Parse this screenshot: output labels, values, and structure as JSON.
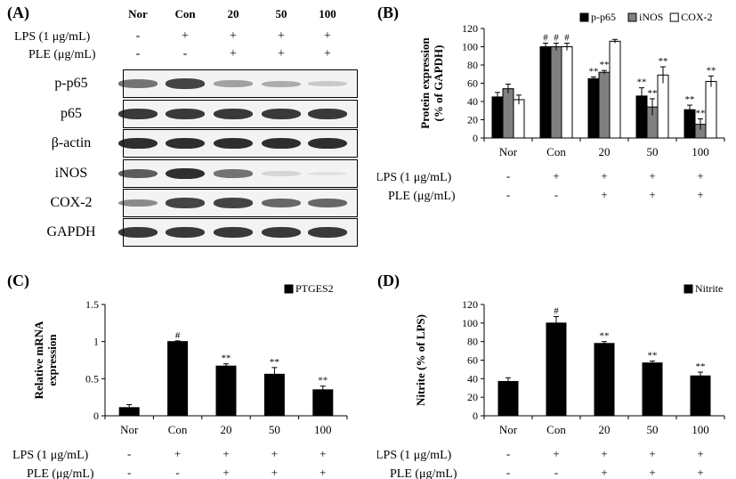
{
  "panels": {
    "A": {
      "label": "(A)",
      "columns": [
        "Nor",
        "Con",
        "20",
        "50",
        "100"
      ],
      "lps_label": "LPS (1 μg/mL)",
      "ple_label": "PLE (μg/mL)",
      "lps_signs": [
        "-",
        "+",
        "+",
        "+",
        "+"
      ],
      "ple_signs": [
        "-",
        "-",
        "+",
        "+",
        "+"
      ],
      "blots": [
        {
          "name": "p-p65",
          "intensity": [
            0.55,
            0.75,
            0.35,
            0.3,
            0.18
          ]
        },
        {
          "name": "p65",
          "intensity": [
            0.8,
            0.8,
            0.8,
            0.8,
            0.8
          ]
        },
        {
          "name": "β-actin",
          "intensity": [
            0.85,
            0.85,
            0.85,
            0.85,
            0.85
          ]
        },
        {
          "name": "iNOS",
          "intensity": [
            0.65,
            0.85,
            0.55,
            0.12,
            0.05
          ]
        },
        {
          "name": "COX-2",
          "intensity": [
            0.45,
            0.75,
            0.75,
            0.6,
            0.6
          ]
        },
        {
          "name": "GAPDH",
          "intensity": [
            0.8,
            0.8,
            0.8,
            0.8,
            0.8
          ]
        }
      ]
    },
    "B": {
      "label": "(B)"
    },
    "C": {
      "label": "(C)"
    },
    "D": {
      "label": "(D)"
    }
  },
  "chart_data": [
    {
      "id": "B",
      "type": "bar",
      "categories": [
        "Nor",
        "Con",
        "20",
        "50",
        "100"
      ],
      "ylabel": "Protein expression (% of GAPDH)",
      "ylim": [
        0,
        120
      ],
      "yticks": [
        0,
        20,
        40,
        60,
        80,
        100,
        120
      ],
      "legend_position": "top-right",
      "series": [
        {
          "name": "p-p65",
          "color": "#000000",
          "values": [
            45,
            100,
            65,
            46,
            31
          ],
          "errors": [
            5,
            4,
            2,
            9,
            5
          ],
          "annotations": [
            "",
            "#",
            "**",
            "**",
            "**"
          ]
        },
        {
          "name": "iNOS",
          "color": "#808080",
          "values": [
            54,
            100,
            72,
            34,
            15
          ],
          "errors": [
            5,
            4,
            2,
            9,
            6
          ],
          "annotations": [
            "",
            "#",
            "**",
            "**",
            "**"
          ]
        },
        {
          "name": "COX-2",
          "color": "#ffffff",
          "values": [
            42,
            100,
            106,
            69,
            62
          ],
          "errors": [
            5,
            4,
            2,
            9,
            6
          ],
          "annotations": [
            "",
            "#",
            "",
            "**",
            "**"
          ]
        }
      ],
      "lps_label": "LPS (1 μg/mL)",
      "ple_label": "PLE (μg/mL)",
      "lps_signs": [
        "-",
        "+",
        "+",
        "+",
        "+"
      ],
      "ple_signs": [
        "-",
        "-",
        "+",
        "+",
        "+"
      ]
    },
    {
      "id": "C",
      "type": "bar",
      "categories": [
        "Nor",
        "Con",
        "20",
        "50",
        "100"
      ],
      "ylabel": "Relative mRNA expression",
      "ylim": [
        0,
        1.5
      ],
      "yticks": [
        0,
        0.5,
        1,
        1.5
      ],
      "ytick_labels": [
        "0",
        "0.5",
        "1",
        "1.5"
      ],
      "legend_position": "top-right",
      "series": [
        {
          "name": "PTGES2",
          "color": "#000000",
          "values": [
            0.11,
            1.0,
            0.67,
            0.56,
            0.35
          ],
          "errors": [
            0.04,
            0.01,
            0.03,
            0.09,
            0.05
          ],
          "annotations": [
            "",
            "#",
            "**",
            "**",
            "**"
          ]
        }
      ],
      "lps_label": "LPS (1 μg/mL)",
      "ple_label": "PLE (μg/mL)",
      "lps_signs": [
        "-",
        "+",
        "+",
        "+",
        "+"
      ],
      "ple_signs": [
        "-",
        "-",
        "+",
        "+",
        "+"
      ]
    },
    {
      "id": "D",
      "type": "bar",
      "categories": [
        "Nor",
        "Con",
        "20",
        "50",
        "100"
      ],
      "ylabel": "Nitrite (% of LPS)",
      "ylim": [
        0,
        120
      ],
      "yticks": [
        0,
        20,
        40,
        60,
        80,
        100,
        120
      ],
      "legend_position": "top-right",
      "series": [
        {
          "name": "Nitrite",
          "color": "#000000",
          "values": [
            37,
            100,
            78,
            57,
            43
          ],
          "errors": [
            4,
            7,
            2,
            2,
            4
          ],
          "annotations": [
            "",
            "#",
            "**",
            "**",
            "**"
          ]
        }
      ],
      "lps_label": "LPS (1 μg/mL)",
      "ple_label": "PLE (μg/mL)",
      "lps_signs": [
        "-",
        "+",
        "+",
        "+",
        "+"
      ],
      "ple_signs": [
        "-",
        "-",
        "+",
        "+",
        "+"
      ]
    }
  ]
}
